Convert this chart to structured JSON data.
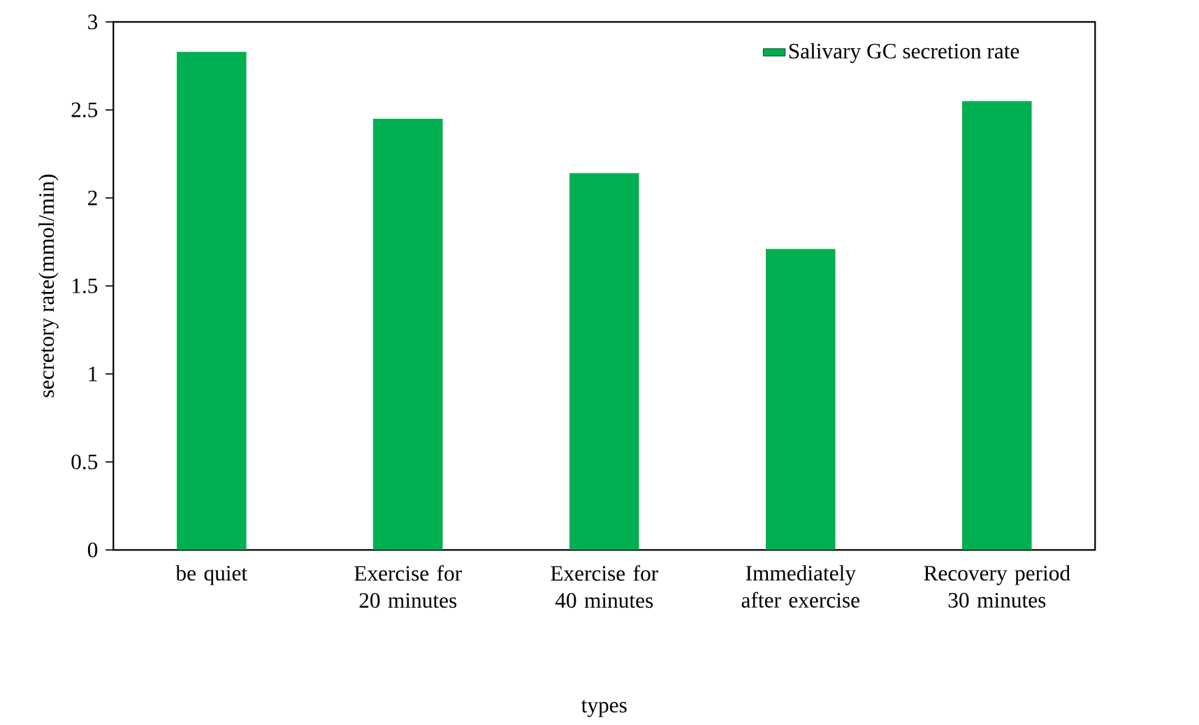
{
  "chart_data": {
    "type": "bar",
    "xlabel": "types",
    "ylabel": "secretory rate(mmol/min)",
    "categories": [
      "be quiet",
      "Exercise for 20 minutes",
      "Exercise for 40 minutes",
      "Immediately after exercise",
      "Recovery period 30 minutes"
    ],
    "series": [
      {
        "name": "Salivary GC secretion rate",
        "color": "#00b050",
        "values": [
          2.83,
          2.45,
          2.14,
          1.71,
          2.55
        ]
      }
    ],
    "ylim": [
      0,
      3
    ],
    "yticks": [
      0,
      0.5,
      1,
      1.5,
      2,
      2.5,
      3
    ],
    "grid": false,
    "legend": "top right"
  }
}
